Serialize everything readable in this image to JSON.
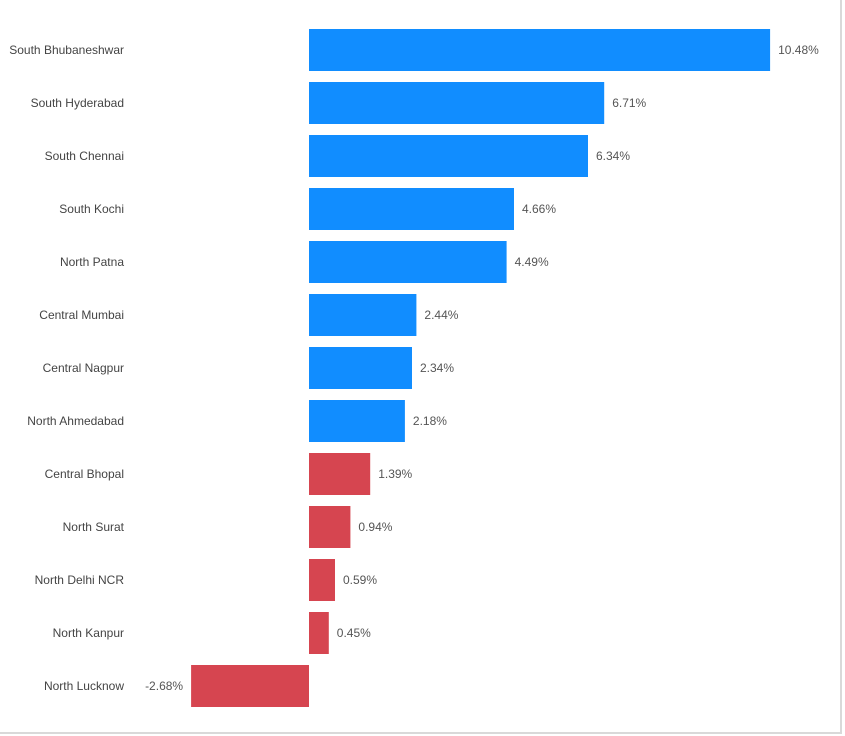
{
  "chart_data": {
    "type": "bar",
    "orientation": "horizontal",
    "categories": [
      "South Bhubaneshwar",
      "South Hyderabad",
      "South Chennai",
      "South Kochi",
      "North Patna",
      "Central Mumbai",
      "Central Nagpur",
      "North Ahmedabad",
      "Central Bhopal",
      "North Surat",
      "North Delhi NCR",
      "North Kanpur",
      "North Lucknow"
    ],
    "values": [
      10.48,
      6.71,
      6.34,
      4.66,
      4.49,
      2.44,
      2.34,
      2.18,
      1.39,
      0.94,
      0.59,
      0.45,
      -2.68
    ],
    "data_labels": [
      "10.48%",
      "6.71%",
      "6.34%",
      "4.66%",
      "4.49%",
      "2.44%",
      "2.34%",
      "2.18%",
      "1.39%",
      "0.94%",
      "0.59%",
      "0.45%",
      "-2.68%"
    ],
    "bar_colors": [
      "#118dff",
      "#118dff",
      "#118dff",
      "#118dff",
      "#118dff",
      "#118dff",
      "#118dff",
      "#118dff",
      "#d64550",
      "#d64550",
      "#d64550",
      "#d64550",
      "#d64550"
    ],
    "xlim": [
      -2.68,
      10.48
    ],
    "grid": false,
    "legend": "none",
    "title": "",
    "xlabel": "",
    "ylabel": ""
  },
  "colors": {
    "positive": "#118dff",
    "negative": "#d64550",
    "label_text": "#444444",
    "value_text": "#555555",
    "frame_border": "#d9d9d9"
  }
}
